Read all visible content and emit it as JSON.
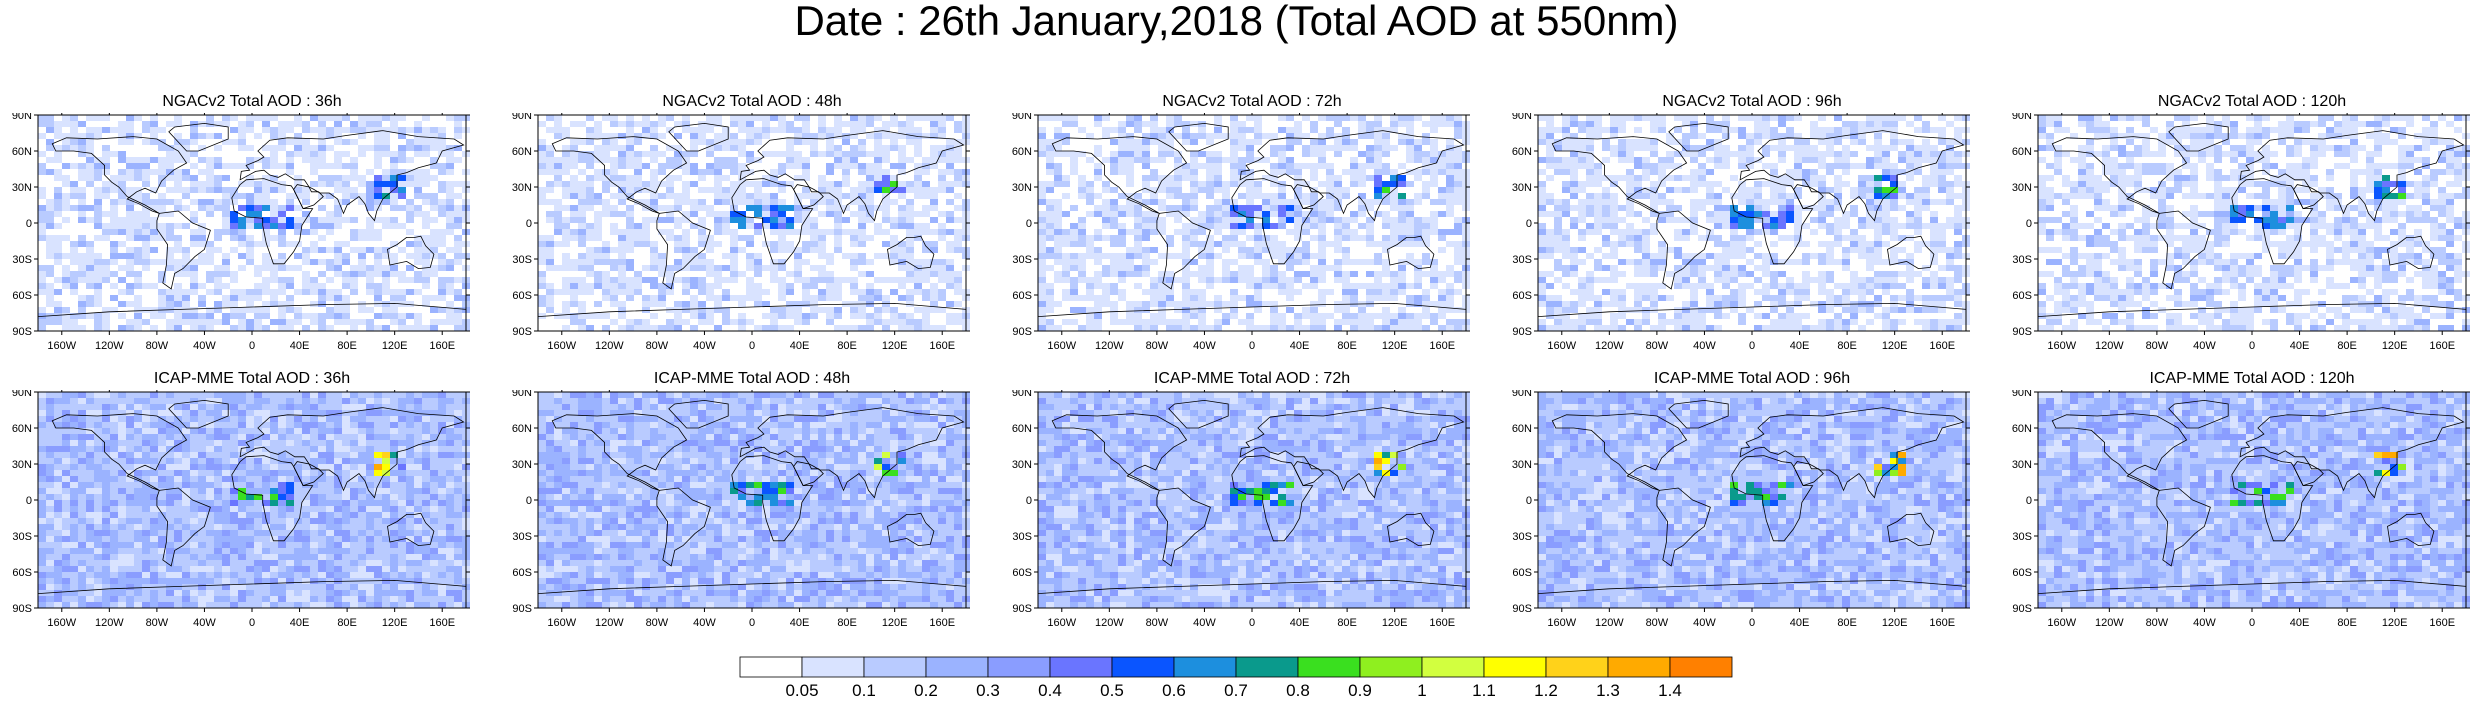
{
  "title": "Date : 26th January,2018 (Total AOD at 550nm)",
  "panels": [
    {
      "title": "NGACv2 Total AOD : 36h"
    },
    {
      "title": "NGACv2 Total AOD : 48h"
    },
    {
      "title": "NGACv2 Total AOD : 72h"
    },
    {
      "title": "NGACv2 Total AOD : 96h"
    },
    {
      "title": "NGACv2 Total AOD : 120h"
    },
    {
      "title": "ICAP-MME Total AOD : 36h"
    },
    {
      "title": "ICAP-MME Total AOD : 48h"
    },
    {
      "title": "ICAP-MME Total AOD : 72h"
    },
    {
      "title": "ICAP-MME Total AOD : 96h"
    },
    {
      "title": "ICAP-MME Total AOD : 120h"
    }
  ],
  "lat_ticks": [
    "90N",
    "60N",
    "30N",
    "0",
    "30S",
    "60S",
    "90S"
  ],
  "lon_ticks": [
    "160W",
    "120W",
    "80W",
    "40W",
    "0",
    "40E",
    "80E",
    "120E",
    "160E"
  ],
  "colorbar": {
    "labels": [
      "0.05",
      "0.1",
      "0.2",
      "0.3",
      "0.4",
      "0.5",
      "0.6",
      "0.7",
      "0.8",
      "0.9",
      "1",
      "1.1",
      "1.2",
      "1.3",
      "1.4"
    ],
    "colors": [
      "#ffffff",
      "#d9e3ff",
      "#b9cbff",
      "#9bb3ff",
      "#8a9dff",
      "#6a75ff",
      "#0a55ff",
      "#1d8fde",
      "#0a9a8c",
      "#3adf1f",
      "#8fef1f",
      "#d2ff3f",
      "#ffff00",
      "#ffd21a",
      "#ffaa00",
      "#ff8000",
      "#ff2b14"
    ]
  }
}
